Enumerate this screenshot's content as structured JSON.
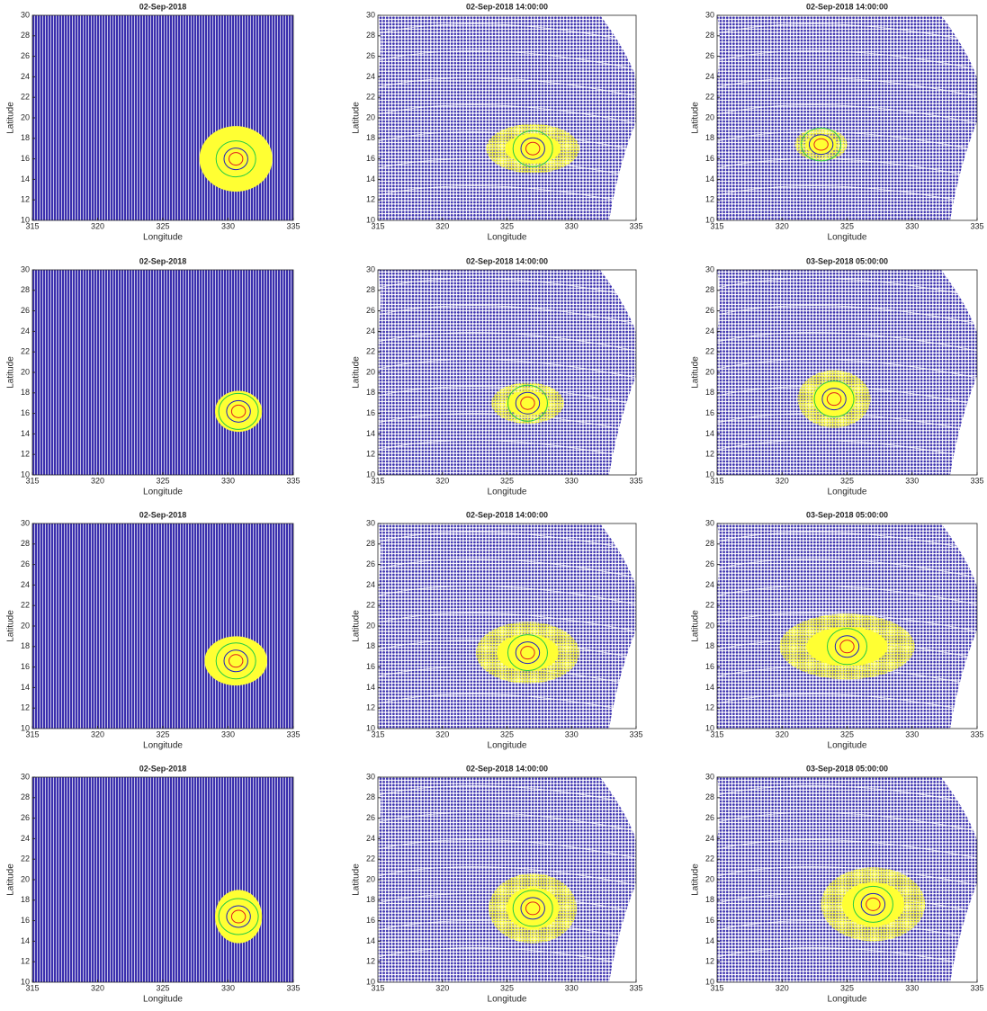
{
  "chart_data": [
    {
      "type": "scatter",
      "title": "02-Sep-2018",
      "xlabel": "Longitude",
      "ylabel": "Latitude",
      "xlim": [
        315,
        335
      ],
      "ylim": [
        10,
        30
      ],
      "xticks": [
        315,
        320,
        325,
        330,
        335
      ],
      "yticks": [
        10,
        12,
        14,
        16,
        18,
        20,
        22,
        24,
        26,
        28,
        30
      ]
    },
    {
      "type": "scatter",
      "title": "02-Sep-2018 14:00:00",
      "xlabel": "Longitude",
      "ylabel": "Latitude",
      "xlim": [
        315,
        335
      ],
      "ylim": [
        10,
        30
      ],
      "xticks": [
        315,
        320,
        325,
        330,
        335
      ],
      "yticks": [
        10,
        12,
        14,
        16,
        18,
        20,
        22,
        24,
        26,
        28,
        30
      ]
    },
    {
      "type": "scatter",
      "title": "02-Sep-2018 14:00:00",
      "xlabel": "Longitude",
      "ylabel": "Latitude",
      "xlim": [
        315,
        335
      ],
      "ylim": [
        10,
        30
      ],
      "xticks": [
        315,
        320,
        325,
        330,
        335
      ],
      "yticks": [
        10,
        12,
        14,
        16,
        18,
        20,
        22,
        24,
        26,
        28,
        30
      ]
    },
    {
      "type": "scatter",
      "title": "02-Sep-2018",
      "xlabel": "Longitude",
      "ylabel": "Latitude",
      "xlim": [
        315,
        335
      ],
      "ylim": [
        10,
        30
      ],
      "xticks": [
        315,
        320,
        325,
        330,
        335
      ],
      "yticks": [
        10,
        12,
        14,
        16,
        18,
        20,
        22,
        24,
        26,
        28,
        30
      ]
    },
    {
      "type": "scatter",
      "title": "02-Sep-2018 14:00:00",
      "xlabel": "Longitude",
      "ylabel": "Latitude",
      "xlim": [
        315,
        335
      ],
      "ylim": [
        10,
        30
      ],
      "xticks": [
        315,
        320,
        325,
        330,
        335
      ],
      "yticks": [
        10,
        12,
        14,
        16,
        18,
        20,
        22,
        24,
        26,
        28,
        30
      ]
    },
    {
      "type": "scatter",
      "title": "03-Sep-2018 05:00:00",
      "xlabel": "Longitude",
      "ylabel": "Latitude",
      "xlim": [
        315,
        335
      ],
      "ylim": [
        10,
        30
      ],
      "xticks": [
        315,
        320,
        325,
        330,
        335
      ],
      "yticks": [
        10,
        12,
        14,
        16,
        18,
        20,
        22,
        24,
        26,
        28,
        30
      ]
    },
    {
      "type": "scatter",
      "title": "02-Sep-2018",
      "xlabel": "Longitude",
      "ylabel": "Latitude",
      "xlim": [
        315,
        335
      ],
      "ylim": [
        10,
        30
      ],
      "xticks": [
        315,
        320,
        325,
        330,
        335
      ],
      "yticks": [
        10,
        12,
        14,
        16,
        18,
        20,
        22,
        24,
        26,
        28,
        30
      ]
    },
    {
      "type": "scatter",
      "title": "02-Sep-2018 14:00:00",
      "xlabel": "Longitude",
      "ylabel": "Latitude",
      "xlim": [
        315,
        335
      ],
      "ylim": [
        10,
        30
      ],
      "xticks": [
        315,
        320,
        325,
        330,
        335
      ],
      "yticks": [
        10,
        12,
        14,
        16,
        18,
        20,
        22,
        24,
        26,
        28,
        30
      ]
    },
    {
      "type": "scatter",
      "title": "03-Sep-2018 05:00:00",
      "xlabel": "Longitude",
      "ylabel": "Latitude",
      "xlim": [
        315,
        335
      ],
      "ylim": [
        10,
        30
      ],
      "xticks": [
        315,
        320,
        325,
        330,
        335
      ],
      "yticks": [
        10,
        12,
        14,
        16,
        18,
        20,
        22,
        24,
        26,
        28,
        30
      ]
    },
    {
      "type": "scatter",
      "title": "02-Sep-2018",
      "xlabel": "Longitude",
      "ylabel": "Latitude",
      "xlim": [
        315,
        335
      ],
      "ylim": [
        10,
        30
      ],
      "xticks": [
        315,
        320,
        325,
        330,
        335
      ],
      "yticks": [
        10,
        12,
        14,
        16,
        18,
        20,
        22,
        24,
        26,
        28,
        30
      ]
    },
    {
      "type": "scatter",
      "title": "02-Sep-2018 14:00:00",
      "xlabel": "Longitude",
      "ylabel": "Latitude",
      "xlim": [
        315,
        335
      ],
      "ylim": [
        10,
        30
      ],
      "xticks": [
        315,
        320,
        325,
        330,
        335
      ],
      "yticks": [
        10,
        12,
        14,
        16,
        18,
        20,
        22,
        24,
        26,
        28,
        30
      ]
    },
    {
      "type": "scatter",
      "title": "03-Sep-2018 05:00:00",
      "xlabel": "Longitude",
      "ylabel": "Latitude",
      "xlim": [
        315,
        335
      ],
      "ylim": [
        10,
        30
      ],
      "xticks": [
        315,
        320,
        325,
        330,
        335
      ],
      "yticks": [
        10,
        12,
        14,
        16,
        18,
        20,
        22,
        24,
        26,
        28,
        30
      ]
    }
  ]
}
